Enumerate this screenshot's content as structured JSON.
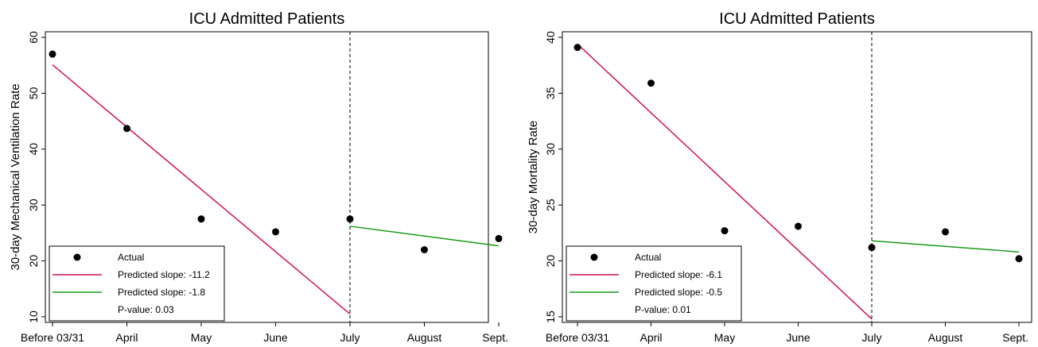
{
  "colors": {
    "actual": "#000000",
    "pre_line": "#d1134e",
    "post_line": "#1a9a1a",
    "frame": "#000000"
  },
  "chart_data": [
    {
      "type": "scatter",
      "title": "ICU Admitted Patients",
      "xlabel": "",
      "ylabel": "30-day Mechanical Ventilation Rate",
      "categories": [
        "Before 03/31",
        "April",
        "May",
        "June",
        "July",
        "August",
        "Sept."
      ],
      "ylim": [
        9,
        61
      ],
      "yticks": [
        10,
        20,
        30,
        40,
        50,
        60
      ],
      "intervention": "July",
      "series": [
        {
          "name": "Actual",
          "kind": "points",
          "values": [
            57,
            43.7,
            27.5,
            25.2,
            27.5,
            22,
            24
          ]
        },
        {
          "name": "Predicted slope: -11.2",
          "kind": "line",
          "from": [
            "Before 03/31",
            55.1
          ],
          "to": [
            "July",
            10.5
          ]
        },
        {
          "name": "Predicted slope: -1.8",
          "kind": "line",
          "from": [
            "July",
            26.2
          ],
          "to": [
            "Sept.",
            22.7
          ]
        }
      ],
      "legend": {
        "position": "bottom-left",
        "pvalue": "P-value: 0.03"
      },
      "grid": false
    },
    {
      "type": "scatter",
      "title": "ICU Admitted Patients",
      "xlabel": "",
      "ylabel": "30-day Mortality Rate",
      "categories": [
        "Before 03/31",
        "April",
        "May",
        "June",
        "July",
        "August",
        "Sept."
      ],
      "ylim": [
        14.5,
        40.5
      ],
      "yticks": [
        15,
        20,
        25,
        30,
        35,
        40
      ],
      "intervention": "July",
      "series": [
        {
          "name": "Actual",
          "kind": "points",
          "values": [
            39.1,
            35.9,
            22.7,
            23.1,
            21.2,
            22.6,
            20.2
          ]
        },
        {
          "name": "Predicted slope: -6.1",
          "kind": "line",
          "from": [
            "Before 03/31",
            39.4
          ],
          "to": [
            "July",
            14.8
          ]
        },
        {
          "name": "Predicted slope: -0.5",
          "kind": "line",
          "from": [
            "July",
            21.8
          ],
          "to": [
            "Sept.",
            20.8
          ]
        }
      ],
      "legend": {
        "position": "bottom-left",
        "pvalue": "P-value: 0.01"
      },
      "grid": false
    }
  ]
}
